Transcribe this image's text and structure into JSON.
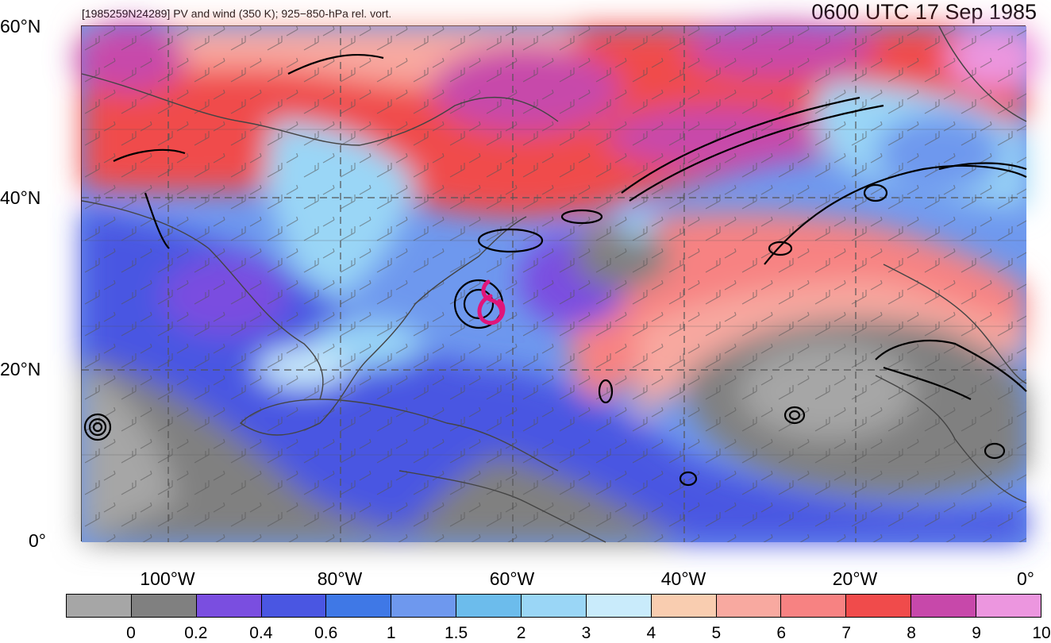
{
  "header": {
    "left_title": "[1985259N24289] PV and wind (350 K); 925−850-hPa rel. vort.",
    "right_title": "0600 UTC 17 Sep 1985"
  },
  "axes": {
    "lat_labels": [
      "60°N",
      "40°N",
      "20°N",
      "0°"
    ],
    "lon_labels": [
      "100°W",
      "80°W",
      "60°W",
      "40°W",
      "20°W",
      "0°"
    ]
  },
  "colorbar": {
    "labels": [
      "0",
      "0.2",
      "0.4",
      "0.6",
      "1",
      "1.5",
      "2",
      "3",
      "4",
      "5",
      "6",
      "7",
      "8",
      "9",
      "10"
    ],
    "colors": [
      "#a6a6a6",
      "#808080",
      "#7a4ee0",
      "#4a56e2",
      "#3f78e6",
      "#6e98ee",
      "#6cbcec",
      "#9ad6f6",
      "#c9ebfb",
      "#f9cdb0",
      "#f8a9a0",
      "#f78282",
      "#f04b4b",
      "#c748aa",
      "#ec96df"
    ]
  },
  "map": {
    "projection": "lat-lon",
    "region": "North Atlantic 0°–60°N, 110°W–0°",
    "features": [
      "pv-shading",
      "wind-barbs",
      "vorticity-contours",
      "coastlines",
      "tropical-cyclone-symbol"
    ],
    "cyclone_symbol_color": "#e0157a"
  }
}
